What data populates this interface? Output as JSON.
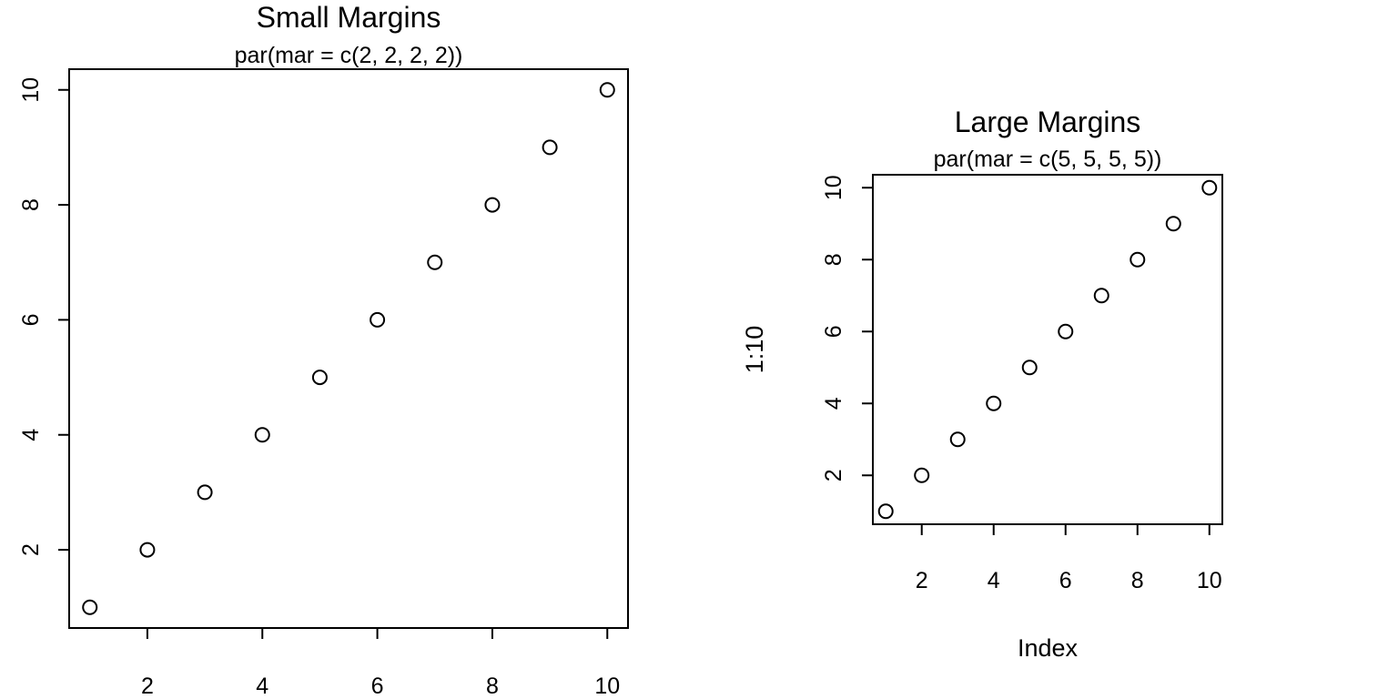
{
  "chart_data": [
    {
      "type": "scatter",
      "title": "Small Margins",
      "subtitle": "par(mar = c(2, 2, 2, 2))",
      "xlabel": "",
      "ylabel": "",
      "x": [
        1,
        2,
        3,
        4,
        5,
        6,
        7,
        8,
        9,
        10
      ],
      "y": [
        1,
        2,
        3,
        4,
        5,
        6,
        7,
        8,
        9,
        10
      ],
      "xticks": [
        2,
        4,
        6,
        8,
        10
      ],
      "yticks": [
        2,
        4,
        6,
        8,
        10
      ],
      "xlim": [
        0.64,
        10.36
      ],
      "ylim": [
        0.64,
        10.36
      ],
      "grid": false,
      "point_style": "open-circle",
      "colors": {
        "points": "#000000",
        "axes": "#000000",
        "background": "#ffffff"
      }
    },
    {
      "type": "scatter",
      "title": "Large Margins",
      "subtitle": "par(mar = c(5, 5, 5, 5))",
      "xlabel": "Index",
      "ylabel": "1:10",
      "x": [
        1,
        2,
        3,
        4,
        5,
        6,
        7,
        8,
        9,
        10
      ],
      "y": [
        1,
        2,
        3,
        4,
        5,
        6,
        7,
        8,
        9,
        10
      ],
      "xticks": [
        2,
        4,
        6,
        8,
        10
      ],
      "yticks": [
        2,
        4,
        6,
        8,
        10
      ],
      "xlim": [
        0.64,
        10.36
      ],
      "ylim": [
        0.64,
        10.36
      ],
      "grid": false,
      "point_style": "open-circle",
      "colors": {
        "points": "#000000",
        "axes": "#000000",
        "background": "#ffffff"
      }
    }
  ]
}
